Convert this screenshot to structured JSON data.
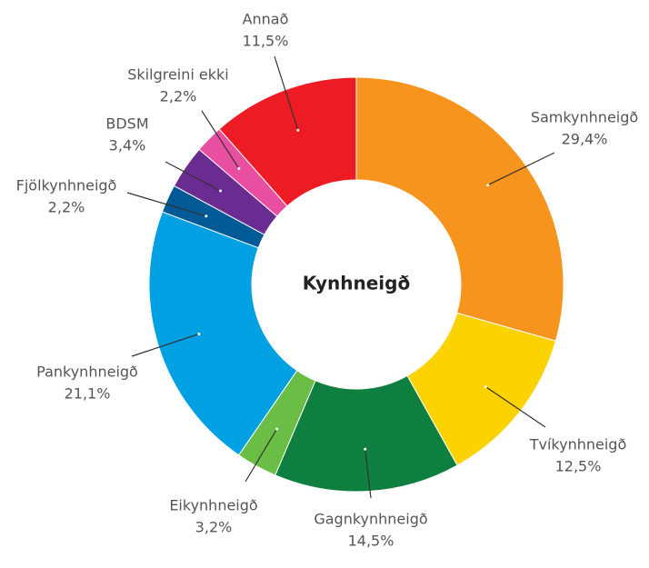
{
  "chart_data": {
    "type": "donut",
    "title": "Kynhneigð",
    "categories": [
      "Samkynhneigð",
      "Tvíkynhneigð",
      "Gagnkynhneigð",
      "Eikynhneigð",
      "Pankynhneigð",
      "Fjölkynhneigð",
      "BDSM",
      "Skilgreini ekki",
      "Annað"
    ],
    "values": [
      29.4,
      12.5,
      14.5,
      3.2,
      21.1,
      2.2,
      3.4,
      2.2,
      11.5
    ],
    "value_labels": [
      "29,4%",
      "12,5%",
      "14,5%",
      "3,2%",
      "21,1%",
      "2,2%",
      "3,4%",
      "2,2%",
      "11,5%"
    ],
    "colors": [
      "#f7941d",
      "#fcd200",
      "#0e7f3e",
      "#6abd45",
      "#00a0e3",
      "#005a96",
      "#6a2c91",
      "#e84fa0",
      "#ed1c24"
    ]
  }
}
